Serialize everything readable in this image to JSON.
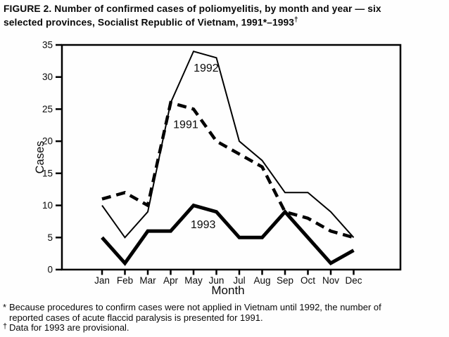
{
  "figure": {
    "title_line1": "FIGURE 2. Number of confirmed cases of poliomyelitis, by month and year — six",
    "title_line2": "selected provinces, Socialist Republic of Vietnam, 1991*–1993",
    "title_line2_sup": "†"
  },
  "chart_data": {
    "type": "line",
    "title": "FIGURE 2. Number of confirmed cases of poliomyelitis, by month and year — six selected provinces, Socialist Republic of Vietnam, 1991–1993",
    "categories": [
      "Jan",
      "Feb",
      "Mar",
      "Apr",
      "May",
      "Jun",
      "Jul",
      "Aug",
      "Sep",
      "Oct",
      "Nov",
      "Dec"
    ],
    "series": [
      {
        "name": "1991",
        "style": "dashed-thick",
        "values": [
          11,
          12,
          10,
          26,
          25,
          20,
          18,
          16,
          9,
          8,
          6,
          5
        ]
      },
      {
        "name": "1992",
        "style": "thin",
        "values": [
          10,
          5,
          9,
          26,
          34,
          33,
          20,
          17,
          12,
          12,
          9,
          5
        ]
      },
      {
        "name": "1993",
        "style": "thick",
        "values": [
          5,
          1,
          6,
          6,
          10,
          9,
          5,
          5,
          9,
          5,
          1,
          3
        ]
      }
    ],
    "xlabel": "Month",
    "ylabel": "Cases",
    "ylim": [
      0,
      35
    ],
    "ytick_step": 5,
    "grid": "off",
    "frame": "box",
    "line_color": "#000000",
    "annotations": [
      {
        "text": "1992",
        "month_index": 4.55,
        "value": 31.4
      },
      {
        "text": "1991",
        "month_index": 3.66,
        "value": 22.6
      },
      {
        "text": "1993",
        "month_index": 4.42,
        "value": 7.0
      }
    ]
  },
  "footnotes": [
    {
      "marker": "*",
      "lines": [
        "Because procedures to confirm cases were not applied in Vietnam until 1992, the number of",
        "reported cases of acute flaccid paralysis is presented for 1991."
      ]
    },
    {
      "marker": "†",
      "lines": [
        "Data for 1993 are provisional."
      ]
    }
  ]
}
